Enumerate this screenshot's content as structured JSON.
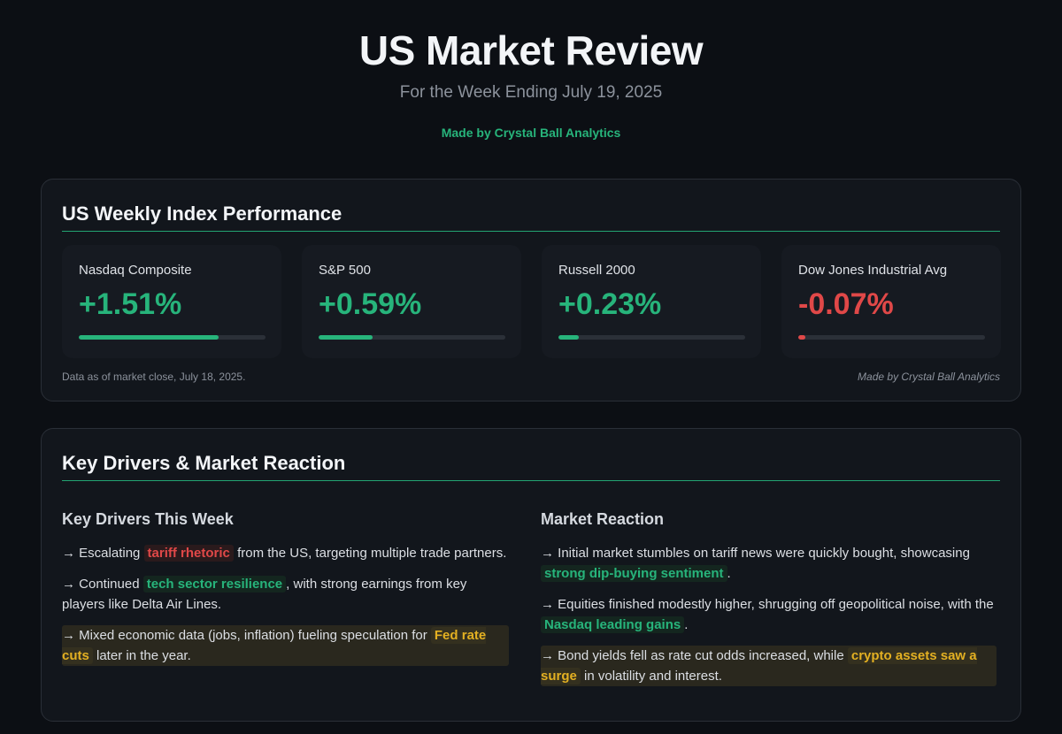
{
  "header": {
    "title": "US Market Review",
    "subtitle": "For the Week Ending July 19, 2025",
    "made_by": "Made by Crystal Ball Analytics"
  },
  "performance": {
    "title": "US Weekly Index Performance",
    "indices": [
      {
        "name": "Nasdaq Composite",
        "value": "+1.51%",
        "bar_fraction": 0.75
      },
      {
        "name": "S&P 500",
        "value": "+0.59%",
        "bar_fraction": 0.29
      },
      {
        "name": "Russell 2000",
        "value": "+0.23%",
        "bar_fraction": 0.11
      },
      {
        "name": "Dow Jones Industrial Avg",
        "value": "-0.07%",
        "bar_fraction": 0.04
      }
    ],
    "footnote": "Data as of market close, July 18, 2025.",
    "made_by": "Made by Crystal Ball Analytics"
  },
  "drivers": {
    "title": "Key Drivers & Market Reaction",
    "left_heading": "Key Drivers This Week",
    "right_heading": "Market Reaction",
    "left": [
      {
        "prefix": "→ Escalating ",
        "tag": "tariff rhetoric",
        "suffix": " from the US, targeting multiple trade partners."
      },
      {
        "prefix": "→ Continued ",
        "tag": "tech sector resilience",
        "suffix": ", with strong earnings from key players like Delta Air Lines."
      },
      {
        "prefix": "→ Mixed economic data (jobs, inflation) fueling speculation for ",
        "tag": "Fed rate cuts",
        "suffix": " later in the year."
      }
    ],
    "right": [
      {
        "prefix": "→ Initial market stumbles on tariff news were quickly bought, showcasing ",
        "tag": "strong dip-buying sentiment",
        "suffix": "."
      },
      {
        "prefix": "→ Equities finished modestly higher, shrugging off geopolitical noise, with the ",
        "tag": "Nasdaq leading gains",
        "suffix": "."
      },
      {
        "prefix": "→ Bond yields fell as rate cut odds increased, while ",
        "tag": "crypto assets saw a surge",
        "suffix": " in volatility and interest."
      }
    ]
  },
  "colors": {
    "accent_green": "#27b47b",
    "negative_red": "#e04848",
    "highlight_yellow": "#e3b022"
  }
}
